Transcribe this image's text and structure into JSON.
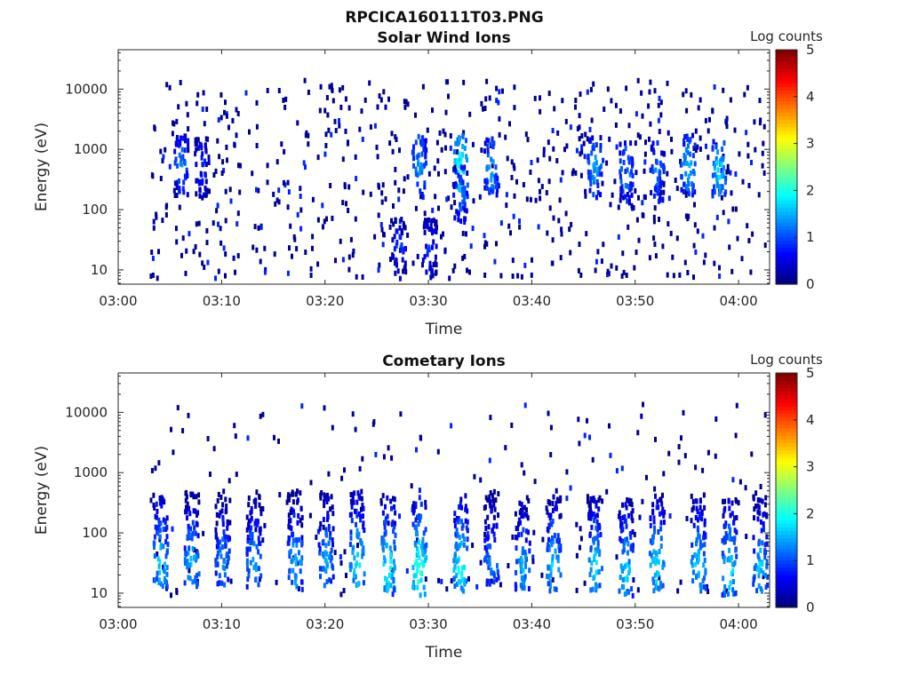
{
  "figure_title": "RPCICA160111T03.PNG",
  "chart_data": [
    {
      "type": "heatmap",
      "title": "Solar Wind Ions",
      "xlabel": "Time",
      "ylabel": "Energy (eV)",
      "y_scale": "log",
      "xlim": [
        "03:00",
        "04:03"
      ],
      "ylim": [
        5.8,
        45000
      ],
      "x_ticks": [
        "03:00",
        "03:10",
        "03:20",
        "03:30",
        "03:40",
        "03:50",
        "04:00"
      ],
      "y_ticks": [
        "10",
        "100",
        "1000",
        "10000"
      ],
      "colorbar": {
        "label": "Log counts",
        "range": [
          0,
          5
        ],
        "ticks": [
          "0",
          "1",
          "2",
          "3",
          "4",
          "5"
        ],
        "colormap": "jet"
      },
      "background_color": "#ffffff",
      "features": [
        {
          "time": "03:06",
          "energy_eV": 600,
          "log_counts": 1.3
        },
        {
          "time": "03:08",
          "energy_eV": 550,
          "log_counts": 1.0
        },
        {
          "time": "03:27",
          "energy_eV": 25,
          "log_counts": 1.0
        },
        {
          "time": "03:29",
          "energy_eV": 600,
          "log_counts": 1.5
        },
        {
          "time": "03:30",
          "energy_eV": 25,
          "log_counts": 1.0
        },
        {
          "time": "03:33",
          "energy_eV": 600,
          "log_counts": 2.0
        },
        {
          "time": "03:33",
          "energy_eV": 200,
          "log_counts": 1.3
        },
        {
          "time": "03:36",
          "energy_eV": 550,
          "log_counts": 1.5
        },
        {
          "time": "03:46",
          "energy_eV": 550,
          "log_counts": 1.5
        },
        {
          "time": "03:49",
          "energy_eV": 450,
          "log_counts": 1.4
        },
        {
          "time": "03:52",
          "energy_eV": 450,
          "log_counts": 1.3
        },
        {
          "time": "03:55",
          "energy_eV": 600,
          "log_counts": 1.6
        },
        {
          "time": "03:58",
          "energy_eV": 500,
          "log_counts": 1.8
        }
      ]
    },
    {
      "type": "heatmap",
      "title": "Cometary Ions",
      "xlabel": "Time",
      "ylabel": "Energy (eV)",
      "y_scale": "log",
      "xlim": [
        "03:00",
        "04:03"
      ],
      "ylim": [
        5.8,
        45000
      ],
      "x_ticks": [
        "03:00",
        "03:10",
        "03:20",
        "03:30",
        "03:40",
        "03:50",
        "04:00"
      ],
      "y_ticks": [
        "10",
        "100",
        "1000",
        "10000"
      ],
      "colorbar": {
        "label": "Log counts",
        "range": [
          0,
          5
        ],
        "ticks": [
          "0",
          "1",
          "2",
          "3",
          "4",
          "5"
        ],
        "colormap": "jet"
      },
      "background_color": "#ffffff",
      "features": [
        {
          "time": "03:04",
          "energy_eV": 35,
          "log_counts": 1.8
        },
        {
          "time": "03:07",
          "energy_eV": 35,
          "log_counts": 1.7
        },
        {
          "time": "03:10",
          "energy_eV": 35,
          "log_counts": 1.5
        },
        {
          "time": "03:13",
          "energy_eV": 35,
          "log_counts": 1.6
        },
        {
          "time": "03:17",
          "energy_eV": 35,
          "log_counts": 1.7
        },
        {
          "time": "03:20",
          "energy_eV": 35,
          "log_counts": 1.6
        },
        {
          "time": "03:23",
          "energy_eV": 35,
          "log_counts": 1.9
        },
        {
          "time": "03:26",
          "energy_eV": 30,
          "log_counts": 2.0
        },
        {
          "time": "03:29",
          "energy_eV": 25,
          "log_counts": 2.2
        },
        {
          "time": "03:33",
          "energy_eV": 30,
          "log_counts": 2.0
        },
        {
          "time": "03:36",
          "energy_eV": 35,
          "log_counts": 1.5
        },
        {
          "time": "03:39",
          "energy_eV": 30,
          "log_counts": 1.6
        },
        {
          "time": "03:42",
          "energy_eV": 30,
          "log_counts": 1.8
        },
        {
          "time": "03:46",
          "energy_eV": 30,
          "log_counts": 1.8
        },
        {
          "time": "03:49",
          "energy_eV": 25,
          "log_counts": 1.8
        },
        {
          "time": "03:52",
          "energy_eV": 30,
          "log_counts": 1.9
        },
        {
          "time": "03:56",
          "energy_eV": 30,
          "log_counts": 1.8
        },
        {
          "time": "03:59",
          "energy_eV": 25,
          "log_counts": 1.9
        },
        {
          "time": "04:02",
          "energy_eV": 30,
          "log_counts": 1.7
        }
      ]
    }
  ]
}
